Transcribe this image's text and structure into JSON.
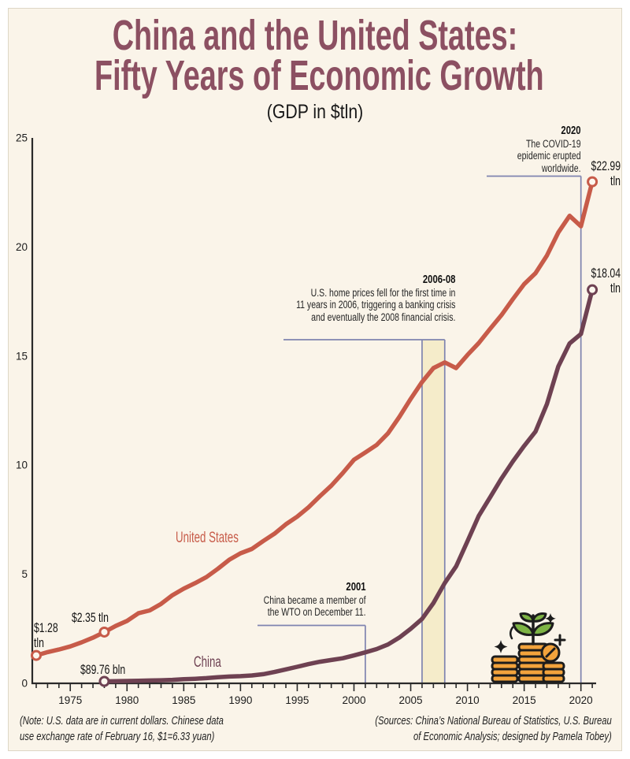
{
  "page": {
    "title_line1": "China and the United States:",
    "title_line2": "Fifty Years of Economic Growth",
    "subtitle": "(GDP in $tln)"
  },
  "annotations": {
    "covid": {
      "year": "2020",
      "lines": [
        "The COVID-19",
        "epidemic erupted",
        "worldwide."
      ]
    },
    "crisis": {
      "year": "2006-08",
      "lines": [
        "U.S. home prices fell for the first time in",
        "11 years in 2006, triggering a banking crisis",
        "and eventually the 2008 financial crisis."
      ]
    },
    "wto": {
      "year": "2001",
      "lines": [
        "China became a member of",
        "the WTO on December 11."
      ]
    }
  },
  "value_labels": {
    "us_start_line1": "$1.28",
    "us_start_line2": "tln",
    "us_1978": "$2.35 tln",
    "china_1978": "$89.76 bln",
    "us_end_line1": "$22.99",
    "us_end_line2": "tln",
    "china_end_line1": "$18.04",
    "china_end_line2": "tln"
  },
  "series_labels": {
    "us": "United States",
    "china": "China"
  },
  "footnotes": {
    "note_line1": "(Note: U.S. data are in current dollars. Chinese data",
    "note_line2": "use exchange rate of February 16, $1=6.33 yuan)",
    "sources_line1": "(Sources: China’s National Bureau of Statistics, U.S. Bureau",
    "sources_line2": "of Economic Analysis; designed by Pamela Tobey)"
  },
  "theme": {
    "background": "#faf4e9",
    "title_color": "#8c5062",
    "us_color": "#c75b49",
    "china_color": "#6e4152",
    "bracket_color": "#7f84af",
    "band_color": "#f5ecca",
    "axis_color": "#2a2a2a",
    "coin_color": "#f2a33c",
    "leaf_color": "#7db344"
  },
  "icons": [
    "money-growth-icon"
  ],
  "chart_data": {
    "type": "line",
    "title": "China and the United States: Fifty Years of Economic Growth",
    "subtitle": "(GDP in $tln)",
    "xlabel": "",
    "ylabel": "GDP in $tln",
    "xlim": [
      1972,
      2022
    ],
    "ylim": [
      0,
      25
    ],
    "xticks": [
      1975,
      1980,
      1985,
      1990,
      1995,
      2000,
      2005,
      2010,
      2015,
      2020
    ],
    "yticks": [
      0,
      5,
      10,
      15,
      20,
      25
    ],
    "grid": false,
    "legend": "inline labels on lines",
    "band": {
      "from": 2006,
      "to": 2008
    },
    "events": [
      {
        "id": "wto",
        "year": 2001,
        "label": "China became a member of the WTO on December 11."
      },
      {
        "id": "crisis",
        "from": 2006,
        "to": 2008,
        "label": "U.S. home prices fell for the first time in 11 years in 2006, triggering a banking crisis and eventually the 2008 financial crisis."
      },
      {
        "id": "covid",
        "year": 2020,
        "label": "The COVID-19 epidemic erupted worldwide."
      }
    ],
    "series": [
      {
        "name": "United States",
        "color": "#c75b49",
        "x": [
          1972,
          1973,
          1974,
          1975,
          1976,
          1977,
          1978,
          1979,
          1980,
          1981,
          1982,
          1983,
          1984,
          1985,
          1986,
          1987,
          1988,
          1989,
          1990,
          1991,
          1992,
          1993,
          1994,
          1995,
          1996,
          1997,
          1998,
          1999,
          2000,
          2001,
          2002,
          2003,
          2004,
          2005,
          2006,
          2007,
          2008,
          2009,
          2010,
          2011,
          2012,
          2013,
          2014,
          2015,
          2016,
          2017,
          2018,
          2019,
          2020,
          2021
        ],
        "values": [
          1.28,
          1.43,
          1.55,
          1.69,
          1.88,
          2.09,
          2.35,
          2.63,
          2.86,
          3.21,
          3.34,
          3.64,
          4.04,
          4.34,
          4.59,
          4.87,
          5.25,
          5.66,
          5.96,
          6.16,
          6.52,
          6.86,
          7.29,
          7.64,
          8.07,
          8.58,
          9.06,
          9.63,
          10.25,
          10.58,
          10.93,
          11.46,
          12.21,
          13.04,
          13.81,
          14.45,
          14.71,
          14.45,
          15.05,
          15.6,
          16.25,
          16.88,
          17.61,
          18.3,
          18.8,
          19.61,
          20.66,
          21.43,
          20.95,
          22.99
        ]
      },
      {
        "name": "China",
        "color": "#6e4152",
        "x": [
          1978,
          1979,
          1980,
          1981,
          1982,
          1983,
          1984,
          1985,
          1986,
          1987,
          1988,
          1989,
          1990,
          1991,
          1992,
          1993,
          1994,
          1995,
          1996,
          1997,
          1998,
          1999,
          2000,
          2001,
          2002,
          2003,
          2004,
          2005,
          2006,
          2007,
          2008,
          2009,
          2010,
          2011,
          2012,
          2013,
          2014,
          2015,
          2016,
          2017,
          2018,
          2019,
          2020,
          2021
        ],
        "values": [
          0.09,
          0.1,
          0.11,
          0.12,
          0.13,
          0.14,
          0.16,
          0.19,
          0.21,
          0.24,
          0.28,
          0.31,
          0.33,
          0.36,
          0.42,
          0.52,
          0.64,
          0.76,
          0.88,
          0.99,
          1.07,
          1.15,
          1.28,
          1.42,
          1.57,
          1.78,
          2.1,
          2.5,
          2.95,
          3.68,
          4.6,
          5.36,
          6.51,
          7.68,
          8.53,
          9.39,
          10.17,
          10.88,
          11.54,
          12.8,
          14.52,
          15.58,
          16.01,
          18.04
        ]
      }
    ],
    "markers": [
      {
        "series": "United States",
        "year": 1972,
        "value": 1.28,
        "label": "$1.28 tln"
      },
      {
        "series": "United States",
        "year": 1978,
        "value": 2.35,
        "label": "$2.35 tln"
      },
      {
        "series": "China",
        "year": 1978,
        "value": 0.09,
        "label": "$89.76 bln"
      },
      {
        "series": "United States",
        "year": 2021,
        "value": 22.99,
        "label": "$22.99 tln"
      },
      {
        "series": "China",
        "year": 2021,
        "value": 18.04,
        "label": "$18.04 tln"
      }
    ]
  }
}
